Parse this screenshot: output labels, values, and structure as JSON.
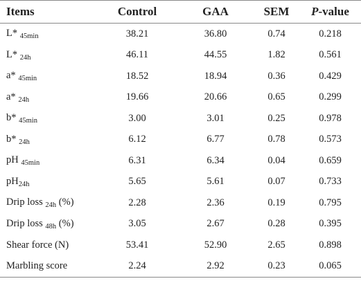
{
  "table": {
    "header": [
      "Items",
      "Control",
      "GAA",
      "SEM",
      {
        "italic": "P",
        "text": "-value"
      }
    ],
    "rows": [
      [
        {
          "main": "L*",
          "sub": "45min"
        },
        "38.21",
        "36.80",
        "0.74",
        "0.218"
      ],
      [
        {
          "main": "L*",
          "sub": "24h"
        },
        "46.11",
        "44.55",
        "1.82",
        "0.561"
      ],
      [
        {
          "main": "a*",
          "sub": "45min"
        },
        "18.52",
        "18.94",
        "0.36",
        "0.429"
      ],
      [
        {
          "main": "a*",
          "sub": "24h"
        },
        "19.66",
        "20.66",
        "0.65",
        "0.299"
      ],
      [
        {
          "main": "b*",
          "sub": "45min"
        },
        "3.00",
        "3.01",
        "0.25",
        "0.978"
      ],
      [
        {
          "main": "b*",
          "sub": "24h"
        },
        "6.12",
        "6.77",
        "0.78",
        "0.573"
      ],
      [
        {
          "main": "pH",
          "sub": "45min"
        },
        "6.31",
        "6.34",
        "0.04",
        "0.659"
      ],
      [
        {
          "main": "pH",
          "sub": "24h",
          "tight": true
        },
        "5.65",
        "5.61",
        "0.07",
        "0.733"
      ],
      [
        {
          "main": "Drip loss",
          "sub": "24h",
          "suffix": "(%)"
        },
        "2.28",
        "2.36",
        "0.19",
        "0.795"
      ],
      [
        {
          "main": "Drip loss",
          "sub": "48h",
          "suffix": "(%)"
        },
        "3.05",
        "2.67",
        "0.28",
        "0.395"
      ],
      [
        {
          "main": "Shear force (N)"
        },
        "53.41",
        "52.90",
        "2.65",
        "0.898"
      ],
      [
        {
          "main": "Marbling score"
        },
        "2.24",
        "2.92",
        "0.23",
        "0.065"
      ]
    ]
  }
}
